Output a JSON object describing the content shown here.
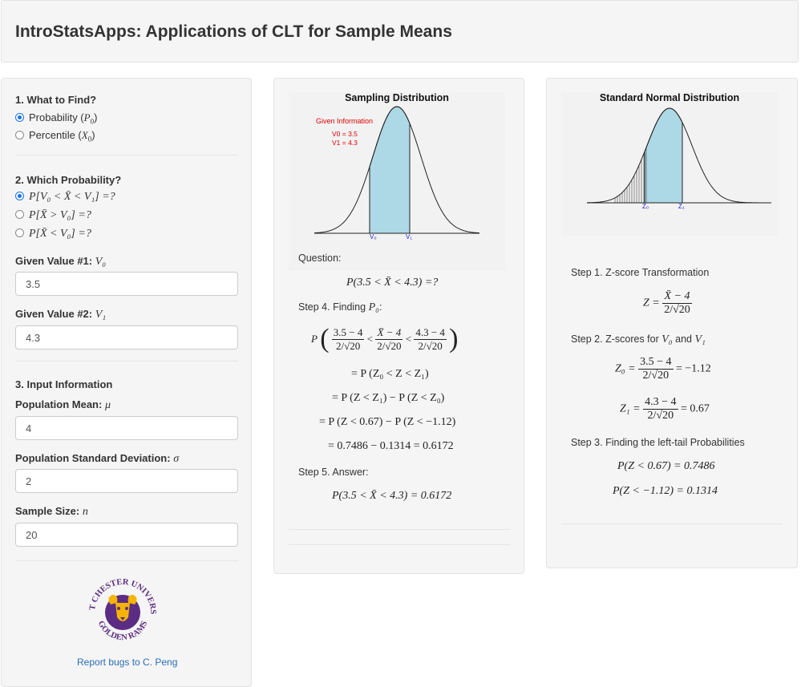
{
  "app_title": "IntroStatsApps: Applications of CLT for Sample Means",
  "sidebar": {
    "q1_label": "1. What to Find?",
    "q1_options": [
      {
        "text": "Probability (",
        "sym": "P",
        "sub": "0",
        "close": ")",
        "checked": true
      },
      {
        "text": "Percentile (",
        "sym": "X",
        "sub": "0",
        "close": ")",
        "checked": false
      }
    ],
    "q2_label": "2. Which Probability?",
    "q2_options": [
      "P[V₀ < X̄ < V₁] =?",
      "P[X̄ > V₀] =?",
      "P[X̄ < V₀] =?"
    ],
    "given1_label": "Given Value #1: ",
    "given1_sym": "V₀",
    "given1_value": "3.5",
    "given2_label": "Given Value #2: ",
    "given2_sym": "V₁",
    "given2_value": "4.3",
    "q3_label": "3. Input Information",
    "mean_label": "Population Mean: ",
    "mean_sym": "μ",
    "mean_value": "4",
    "sd_label": "Population Standard Deviation: ",
    "sd_sym": "σ",
    "sd_value": "2",
    "n_label": "Sample Size: ",
    "n_sym": "n",
    "n_value": "20",
    "logo_text_top": "WEST CHESTER UNIVERSITY",
    "logo_text_bottom": "GOLDEN RAMS",
    "report_link": "Report bugs to C. Peng"
  },
  "middle": {
    "plot_title": "Sampling Distribution",
    "given_info_title": "Given Information",
    "given_info_v0": "V0 = 3.5",
    "given_info_v1": "V1 = 4.3",
    "axis_v0": "V₀",
    "axis_v1": "V₁",
    "question_label": "Question:",
    "question_eq": "P(3.5 < X̄ < 4.3) =?",
    "step4_label": "Step 4. Finding ",
    "step4_sym": "P₀",
    "step4_colon": ":",
    "frac_a_num": "3.5 − 4",
    "frac_a_den": "2/√20",
    "frac_b_num": "X̄ − 4",
    "frac_b_den": "2/√20",
    "frac_c_num": "4.3 − 4",
    "frac_c_den": "2/√20",
    "line2": "= P (Z₀ < Z < Z₁)",
    "line3": "= P (Z < Z₁) − P (Z < Z₀)",
    "line4": "= P (Z < 0.67) − P (Z < −1.12)",
    "line5": "= 0.7486 − 0.1314 = 0.6172",
    "step5_label": "Step 5. Answer:",
    "answer_eq": "P(3.5 < X̄ < 4.3) = 0.6172"
  },
  "right": {
    "plot_title": "Standard Normal Distribution",
    "axis_z0": "Z₀",
    "axis_z1": "Z₁",
    "step1_label": "Step 1. Z-score Transformation",
    "z_eq_lhs": "Z =",
    "z_num": "X̄ − 4",
    "z_den": "2/√20",
    "step2_label": "Step 2. Z-scores for ",
    "step2_v0": "V₀",
    "step2_and": " and ",
    "step2_v1": "V₁",
    "z0_lhs": "Z₀ =",
    "z0_num": "3.5 − 4",
    "z0_den": "2/√20",
    "z0_result": "= −1.12",
    "z1_lhs": "Z₁ =",
    "z1_num": "4.3 − 4",
    "z1_den": "2/√20",
    "z1_result": "= 0.67",
    "step3_label": "Step 3. Finding the left-tail Probabilities",
    "prob1": "P(Z < 0.67) = 0.7486",
    "prob2": "P(Z < −1.12) = 0.1314"
  },
  "colors": {
    "fill_blue": "#add8e6",
    "given_red": "#e00000",
    "axis_label_blue": "#2222cc",
    "logo_purple": "#5b2c83",
    "logo_gold": "#f4b400"
  }
}
